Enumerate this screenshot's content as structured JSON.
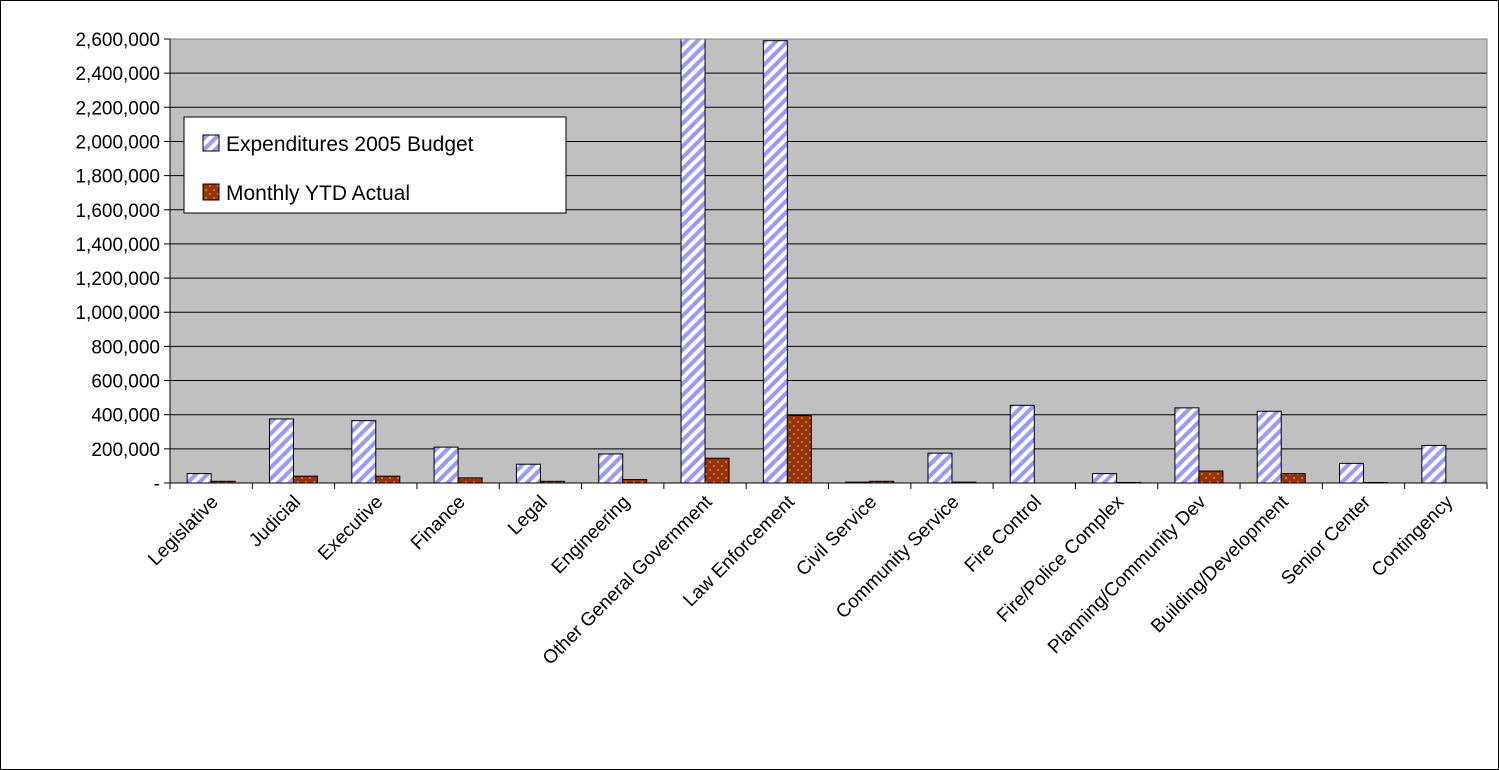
{
  "chart_data": {
    "type": "bar",
    "title": "",
    "xlabel": "",
    "ylabel": "",
    "ylim": [
      0,
      2600000
    ],
    "y_ticks": [
      0,
      200000,
      400000,
      600000,
      800000,
      1000000,
      1200000,
      1400000,
      1600000,
      1800000,
      2000000,
      2200000,
      2400000,
      2600000
    ],
    "y_tick_labels": [
      "-",
      "200,000",
      "400,000",
      "600,000",
      "800,000",
      "1,000,000",
      "1,200,000",
      "1,400,000",
      "1,600,000",
      "1,800,000",
      "2,000,000",
      "2,200,000",
      "2,400,000",
      "2,600,000"
    ],
    "grid": true,
    "legend_position": "top-left",
    "categories": [
      "Legislative",
      "Judicial",
      "Executive",
      "Finance",
      "Legal",
      "Engineering",
      "Other General Government",
      "Law Enforcement",
      "Civil Service",
      "Community Service",
      "Fire Control",
      "Fire/Police Complex",
      "Planning/Community Dev",
      "Building/Development",
      "Senior Center",
      "Contingency"
    ],
    "series": [
      {
        "name": "Expenditures 2005 Budget",
        "color": "#9999ff",
        "pattern": "diagonal-stripes",
        "values": [
          55000,
          375000,
          365000,
          210000,
          110000,
          170000,
          2650000,
          2590000,
          5000,
          175000,
          455000,
          55000,
          440000,
          420000,
          115000,
          220000
        ]
      },
      {
        "name": "Monthly YTD Actual",
        "color": "#993300",
        "pattern": "dots",
        "values": [
          10000,
          40000,
          40000,
          30000,
          10000,
          20000,
          145000,
          395000,
          10000,
          5000,
          0,
          3000,
          70000,
          55000,
          3000,
          0
        ]
      }
    ]
  },
  "colors": {
    "plot_background": "#c0c0c0",
    "page_background": "#ffffff",
    "axis": "#000000"
  }
}
